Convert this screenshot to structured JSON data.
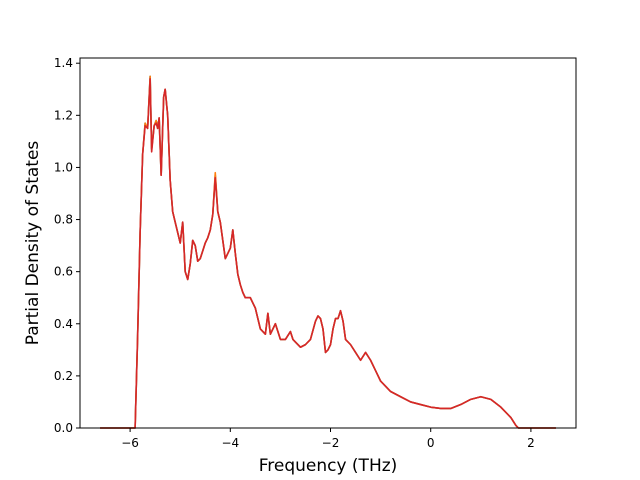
{
  "chart_data": {
    "type": "line",
    "title": "",
    "xlabel": "Frequency (THz)",
    "ylabel": "Partial Density of States",
    "xlim": [
      -7.0,
      2.9
    ],
    "ylim": [
      0.0,
      1.42
    ],
    "xticks": [
      -6,
      -4,
      -2,
      0,
      2
    ],
    "xtick_labels": [
      "−6",
      "−4",
      "−2",
      "0",
      "2"
    ],
    "yticks": [
      0.0,
      0.2,
      0.4,
      0.6,
      0.8,
      1.0,
      1.2,
      1.4
    ],
    "ytick_labels": [
      "0.0",
      "0.2",
      "0.4",
      "0.6",
      "0.8",
      "1.0",
      "1.2",
      "1.4"
    ],
    "grid": false,
    "legend": "none",
    "series": [
      {
        "color": "#1f77b4",
        "x": [
          -6.6,
          -5.9,
          -5.85,
          -5.8,
          -5.75,
          -5.7,
          -5.65,
          -5.6,
          -5.57,
          -5.52,
          -5.48,
          -5.45,
          -5.42,
          -5.38,
          -5.33,
          -5.3,
          -5.25,
          -5.2,
          -5.15,
          -5.1,
          -5.05,
          -5.0,
          -4.95,
          -4.9,
          -4.85,
          -4.8,
          -4.75,
          -4.7,
          -4.65,
          -4.6,
          -4.55,
          -4.5,
          -4.45,
          -4.4,
          -4.35,
          -4.3,
          -4.25,
          -4.2,
          -4.15,
          -4.1,
          -4.05,
          -4.0,
          -3.95,
          -3.9,
          -3.85,
          -3.8,
          -3.75,
          -3.7,
          -3.6,
          -3.5,
          -3.4,
          -3.3,
          -3.25,
          -3.2,
          -3.1,
          -3.0,
          -2.9,
          -2.8,
          -2.75,
          -2.7,
          -2.6,
          -2.5,
          -2.4,
          -2.3,
          -2.25,
          -2.2,
          -2.15,
          -2.1,
          -2.05,
          -2.0,
          -1.95,
          -1.9,
          -1.85,
          -1.8,
          -1.75,
          -1.7,
          -1.6,
          -1.5,
          -1.4,
          -1.3,
          -1.2,
          -1.1,
          -1.0,
          -0.9,
          -0.8,
          -0.6,
          -0.4,
          -0.2,
          0.0,
          0.2,
          0.4,
          0.6,
          0.8,
          1.0,
          1.2,
          1.4,
          1.6,
          1.7,
          1.75,
          2.0,
          2.5
        ],
        "y": [
          0.0,
          0.0,
          0.35,
          0.75,
          1.05,
          1.17,
          1.15,
          1.35,
          1.07,
          1.16,
          1.18,
          1.15,
          1.19,
          0.97,
          1.27,
          1.3,
          1.2,
          0.95,
          0.83,
          0.79,
          0.75,
          0.71,
          0.79,
          0.6,
          0.57,
          0.63,
          0.72,
          0.7,
          0.64,
          0.65,
          0.68,
          0.71,
          0.73,
          0.76,
          0.82,
          0.97,
          0.83,
          0.79,
          0.72,
          0.65,
          0.67,
          0.69,
          0.76,
          0.67,
          0.59,
          0.55,
          0.52,
          0.5,
          0.5,
          0.46,
          0.38,
          0.36,
          0.44,
          0.36,
          0.4,
          0.34,
          0.34,
          0.37,
          0.34,
          0.33,
          0.31,
          0.32,
          0.34,
          0.41,
          0.43,
          0.42,
          0.38,
          0.29,
          0.3,
          0.32,
          0.38,
          0.42,
          0.42,
          0.45,
          0.41,
          0.34,
          0.32,
          0.29,
          0.26,
          0.29,
          0.26,
          0.22,
          0.18,
          0.16,
          0.14,
          0.12,
          0.1,
          0.09,
          0.08,
          0.075,
          0.075,
          0.09,
          0.11,
          0.12,
          0.11,
          0.08,
          0.04,
          0.01,
          0.0,
          0.0,
          0.0
        ]
      },
      {
        "color": "#ff7f0e",
        "x": [
          -6.6,
          -5.9,
          -5.85,
          -5.8,
          -5.75,
          -5.7,
          -5.65,
          -5.6,
          -5.57,
          -5.52,
          -5.48,
          -5.45,
          -5.42,
          -5.38,
          -5.33,
          -5.3,
          -5.25,
          -5.2,
          -5.15,
          -5.1,
          -5.05,
          -5.0,
          -4.95,
          -4.9,
          -4.85,
          -4.8,
          -4.75,
          -4.7,
          -4.65,
          -4.6,
          -4.55,
          -4.5,
          -4.45,
          -4.4,
          -4.35,
          -4.3,
          -4.25,
          -4.2,
          -4.15,
          -4.1,
          -4.05,
          -4.0,
          -3.95,
          -3.9,
          -3.85,
          -3.8,
          -3.75,
          -3.7,
          -3.6,
          -3.5,
          -3.4,
          -3.3,
          -3.25,
          -3.2,
          -3.1,
          -3.0,
          -2.9,
          -2.8,
          -2.75,
          -2.7,
          -2.6,
          -2.5,
          -2.4,
          -2.3,
          -2.25,
          -2.2,
          -2.15,
          -2.1,
          -2.05,
          -2.0,
          -1.95,
          -1.9,
          -1.85,
          -1.8,
          -1.75,
          -1.7,
          -1.6,
          -1.5,
          -1.4,
          -1.3,
          -1.2,
          -1.1,
          -1.0,
          -0.9,
          -0.8,
          -0.6,
          -0.4,
          -0.2,
          0.0,
          0.2,
          0.4,
          0.6,
          0.8,
          1.0,
          1.2,
          1.4,
          1.6,
          1.7,
          1.75,
          2.0,
          2.5
        ],
        "y": [
          0.0,
          0.0,
          0.35,
          0.75,
          1.05,
          1.17,
          1.15,
          1.35,
          1.07,
          1.16,
          1.18,
          1.15,
          1.19,
          0.97,
          1.27,
          1.3,
          1.2,
          0.95,
          0.83,
          0.79,
          0.75,
          0.71,
          0.79,
          0.6,
          0.57,
          0.63,
          0.72,
          0.7,
          0.64,
          0.65,
          0.68,
          0.71,
          0.73,
          0.76,
          0.82,
          0.98,
          0.83,
          0.79,
          0.72,
          0.65,
          0.67,
          0.69,
          0.76,
          0.67,
          0.59,
          0.55,
          0.52,
          0.5,
          0.5,
          0.46,
          0.38,
          0.36,
          0.44,
          0.36,
          0.4,
          0.34,
          0.34,
          0.37,
          0.34,
          0.33,
          0.31,
          0.32,
          0.34,
          0.41,
          0.43,
          0.42,
          0.38,
          0.29,
          0.3,
          0.32,
          0.38,
          0.42,
          0.42,
          0.45,
          0.41,
          0.34,
          0.32,
          0.29,
          0.26,
          0.29,
          0.26,
          0.22,
          0.18,
          0.16,
          0.14,
          0.12,
          0.1,
          0.09,
          0.08,
          0.075,
          0.075,
          0.09,
          0.11,
          0.12,
          0.11,
          0.08,
          0.04,
          0.01,
          0.0,
          0.0,
          0.0
        ]
      },
      {
        "color": "#d62728",
        "x": [
          -6.6,
          -5.9,
          -5.85,
          -5.8,
          -5.75,
          -5.7,
          -5.65,
          -5.6,
          -5.57,
          -5.52,
          -5.48,
          -5.45,
          -5.42,
          -5.38,
          -5.33,
          -5.3,
          -5.25,
          -5.2,
          -5.15,
          -5.1,
          -5.05,
          -5.0,
          -4.95,
          -4.9,
          -4.85,
          -4.8,
          -4.75,
          -4.7,
          -4.65,
          -4.6,
          -4.55,
          -4.5,
          -4.45,
          -4.4,
          -4.35,
          -4.3,
          -4.25,
          -4.2,
          -4.15,
          -4.1,
          -4.05,
          -4.0,
          -3.95,
          -3.9,
          -3.85,
          -3.8,
          -3.75,
          -3.7,
          -3.6,
          -3.5,
          -3.4,
          -3.3,
          -3.25,
          -3.2,
          -3.1,
          -3.0,
          -2.9,
          -2.8,
          -2.75,
          -2.7,
          -2.6,
          -2.5,
          -2.4,
          -2.3,
          -2.25,
          -2.2,
          -2.15,
          -2.1,
          -2.05,
          -2.0,
          -1.95,
          -1.9,
          -1.85,
          -1.8,
          -1.75,
          -1.7,
          -1.6,
          -1.5,
          -1.4,
          -1.3,
          -1.2,
          -1.1,
          -1.0,
          -0.9,
          -0.8,
          -0.6,
          -0.4,
          -0.2,
          0.0,
          0.2,
          0.4,
          0.6,
          0.8,
          1.0,
          1.2,
          1.4,
          1.6,
          1.7,
          1.75,
          2.0,
          2.5
        ],
        "y": [
          0.0,
          0.0,
          0.35,
          0.75,
          1.05,
          1.16,
          1.15,
          1.34,
          1.06,
          1.16,
          1.17,
          1.15,
          1.19,
          0.97,
          1.27,
          1.3,
          1.2,
          0.95,
          0.83,
          0.79,
          0.75,
          0.71,
          0.79,
          0.6,
          0.57,
          0.63,
          0.72,
          0.7,
          0.64,
          0.65,
          0.68,
          0.71,
          0.73,
          0.76,
          0.82,
          0.96,
          0.83,
          0.79,
          0.72,
          0.65,
          0.67,
          0.69,
          0.76,
          0.67,
          0.59,
          0.55,
          0.52,
          0.5,
          0.5,
          0.46,
          0.38,
          0.36,
          0.44,
          0.36,
          0.4,
          0.34,
          0.34,
          0.37,
          0.34,
          0.33,
          0.31,
          0.32,
          0.34,
          0.41,
          0.43,
          0.42,
          0.38,
          0.29,
          0.3,
          0.32,
          0.38,
          0.42,
          0.42,
          0.45,
          0.41,
          0.34,
          0.32,
          0.29,
          0.26,
          0.29,
          0.26,
          0.22,
          0.18,
          0.16,
          0.14,
          0.12,
          0.1,
          0.09,
          0.08,
          0.075,
          0.075,
          0.09,
          0.11,
          0.12,
          0.11,
          0.08,
          0.04,
          0.01,
          0.0,
          0.0,
          0.0
        ]
      }
    ]
  }
}
